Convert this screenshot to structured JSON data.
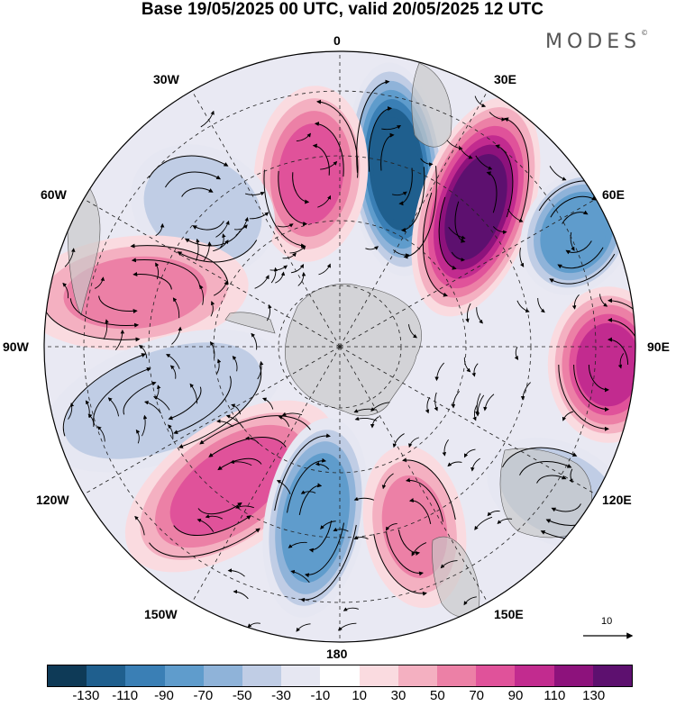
{
  "title": "Base 19/05/2025 00 UTC, valid 20/05/2025 12 UTC",
  "logo": "MODES",
  "logo_mark": "©",
  "meridians": [
    "0",
    "30E",
    "60E",
    "90E",
    "120E",
    "150E",
    "180",
    "150W",
    "120W",
    "90W",
    "60W",
    "30W"
  ],
  "colorbar": {
    "colors": [
      "#0e3a57",
      "#1f5f8e",
      "#3a7fb5",
      "#5f9ccc",
      "#8fb3d9",
      "#c0cde5",
      "#e6e7f2",
      "#ffffff",
      "#fadbe0",
      "#f4b0c1",
      "#ec80a6",
      "#e0529a",
      "#c22b8f",
      "#8d127c",
      "#5d106f"
    ],
    "ticks": [
      "-130",
      "-110",
      "-90",
      "-70",
      "-50",
      "-30",
      "-10",
      "10",
      "30",
      "50",
      "70",
      "90",
      "110",
      "130"
    ]
  },
  "reference_vector": "10",
  "anomaly_centers": [
    {
      "region": "0-20E mid-lat",
      "value": -130
    },
    {
      "region": "20E-40E mid-lat",
      "value": 130
    },
    {
      "region": "60E",
      "value": -90
    },
    {
      "region": "90E",
      "value": 90
    },
    {
      "region": "15W",
      "value": 70
    },
    {
      "region": "45W",
      "value": -50
    },
    {
      "region": "75W",
      "value": 50
    },
    {
      "region": "100W",
      "value": -50
    },
    {
      "region": "130W",
      "value": 70
    },
    {
      "region": "165W",
      "value": -90
    },
    {
      "region": "165E",
      "value": 50
    },
    {
      "region": "125E",
      "value": -50
    }
  ]
}
